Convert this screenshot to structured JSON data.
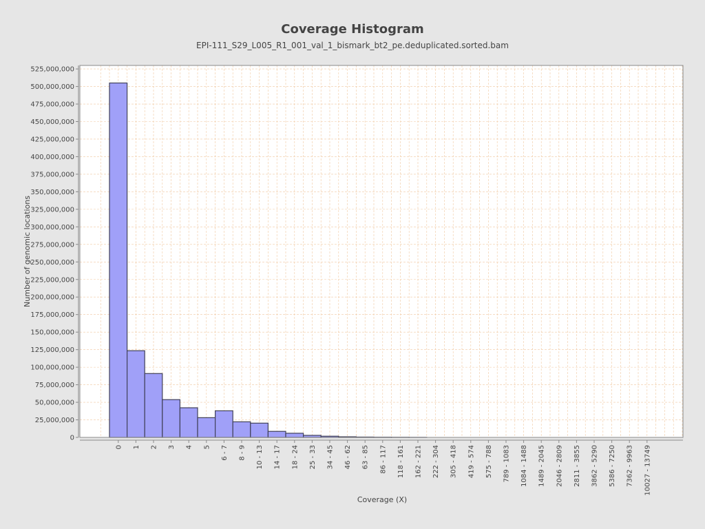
{
  "chart_data": {
    "type": "bar",
    "title": "Coverage Histogram",
    "subtitle": "EPI-111_S29_L005_R1_001_val_1_bismark_bt2_pe.deduplicated.sorted.bam",
    "xlabel": "Coverage (X)",
    "ylabel": "Number of genomic locations",
    "ylim": [
      0,
      530000000
    ],
    "yticks": [
      0,
      25000000,
      50000000,
      75000000,
      100000000,
      125000000,
      150000000,
      175000000,
      200000000,
      225000000,
      250000000,
      275000000,
      300000000,
      325000000,
      350000000,
      375000000,
      400000000,
      425000000,
      450000000,
      475000000,
      500000000,
      525000000
    ],
    "ytick_labels": [
      "0",
      "25,000,000",
      "50,000,000",
      "75,000,000",
      "100,000,000",
      "125,000,000",
      "150,000,000",
      "175,000,000",
      "200,000,000",
      "225,000,000",
      "250,000,000",
      "275,000,000",
      "300,000,000",
      "325,000,000",
      "350,000,000",
      "375,000,000",
      "400,000,000",
      "425,000,000",
      "450,000,000",
      "475,000,000",
      "500,000,000",
      "525,000,000"
    ],
    "categories": [
      "0",
      "1",
      "2",
      "3",
      "4",
      "5",
      "6 - 7",
      "8 - 9",
      "10 - 13",
      "14 - 17",
      "18 - 24",
      "25 - 33",
      "34 - 45",
      "46 - 62",
      "63 - 85",
      "86 - 117",
      "118 - 161",
      "162 - 221",
      "222 - 304",
      "305 - 418",
      "419 - 574",
      "575 - 788",
      "789 - 1083",
      "1084 - 1488",
      "1489 - 2045",
      "2046 - 2809",
      "2811 - 3855",
      "3862 - 5290",
      "5386 - 7250",
      "7362 - 9963",
      "10027 - 13749"
    ],
    "values": [
      505000000,
      123500000,
      91000000,
      53800000,
      42200000,
      28100000,
      37900000,
      22200000,
      20300000,
      8600000,
      5900000,
      2900000,
      1700000,
      900000,
      500000,
      300000,
      200000,
      100000,
      0,
      0,
      0,
      0,
      0,
      0,
      0,
      0,
      0,
      0,
      0,
      0,
      0
    ],
    "grid": true,
    "bar_color": "#a0a0f8",
    "bar_edge_color": "#404058",
    "grid_color": "#f0c8a0",
    "plot_background": "#ffffff"
  }
}
